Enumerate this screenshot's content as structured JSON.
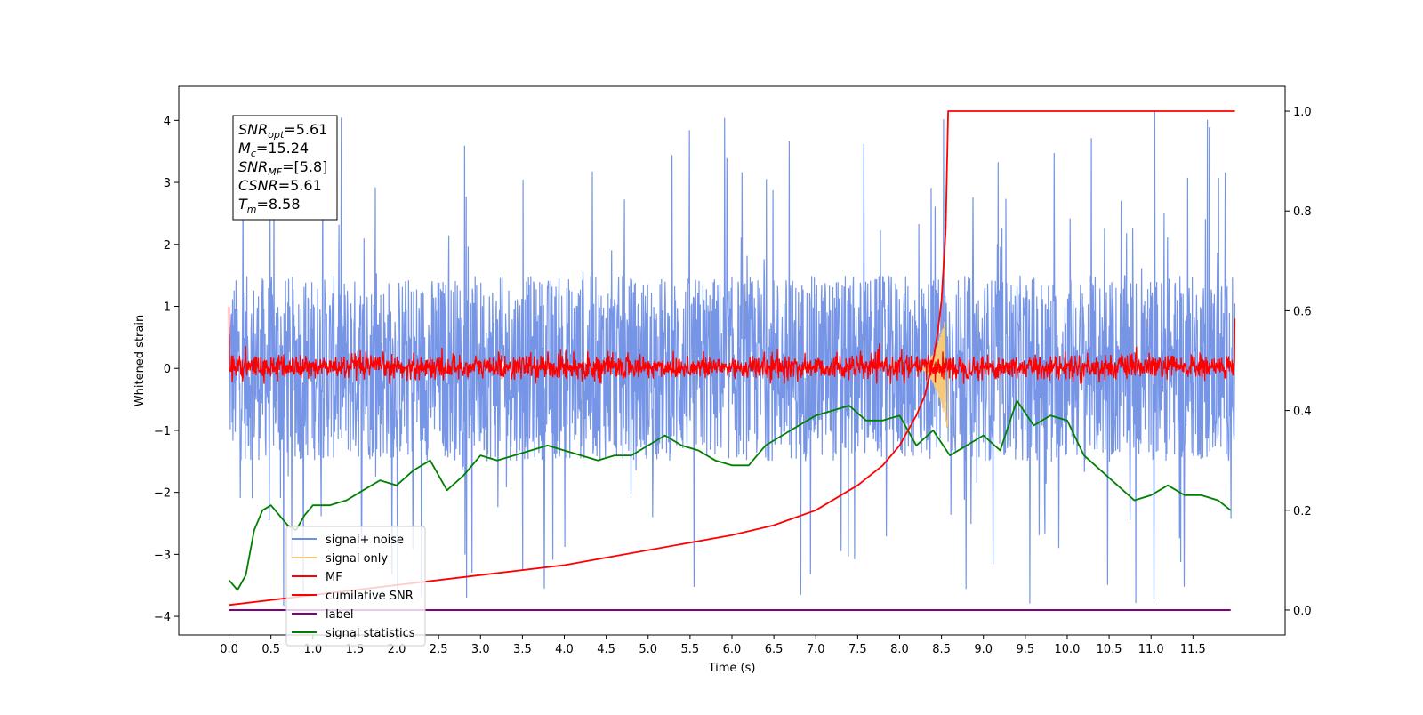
{
  "chart_data": {
    "type": "line",
    "xlabel": "Time (s)",
    "ylabel": "Whitened strain",
    "xlim": [
      -0.6,
      12.6
    ],
    "ylim": [
      -4.3,
      4.55
    ],
    "y2lim": [
      -0.05,
      1.05
    ],
    "x_ticks": [
      "0.0",
      "0.5",
      "1.0",
      "1.5",
      "2.0",
      "2.5",
      "3.0",
      "3.5",
      "4.0",
      "4.5",
      "5.0",
      "5.5",
      "6.0",
      "6.5",
      "7.0",
      "7.5",
      "8.0",
      "8.5",
      "9.0",
      "9.5",
      "10.0",
      "10.5",
      "11.0",
      "11.5"
    ],
    "y_ticks": [
      "4",
      "3",
      "2",
      "1",
      "0",
      "−1",
      "−2",
      "−3",
      "−4"
    ],
    "y2_ticks": [
      "1.0",
      "0.8",
      "0.6",
      "0.4",
      "0.2",
      "0.0"
    ],
    "grid": false,
    "legend_position": "lower-left",
    "info_box": [
      {
        "base": "SNR",
        "sub": "opt",
        "rest": "=5.61"
      },
      {
        "base": "M",
        "sub": "c",
        "rest": "=15.24"
      },
      {
        "base": "SNR",
        "sub": "MF",
        "rest": "=[5.8]"
      },
      {
        "base": "CSNR",
        "sub": "",
        "rest": "=5.61"
      },
      {
        "base": "T",
        "sub": "m",
        "rest": "=8.58"
      }
    ],
    "series": [
      {
        "name": "signal+ noise",
        "color": "#6f8fe6",
        "axis": "left",
        "x_range": [
          0.0,
          12.0
        ],
        "center": 0.0,
        "envelope_typical": [
          -1.5,
          1.5
        ],
        "envelope_extreme": [
          -3.85,
          4.15
        ]
      },
      {
        "name": "signal only",
        "color": "#f5c97a",
        "axis": "left",
        "x_range": [
          8.2,
          8.58
        ],
        "peak_amplitude": 1.0
      },
      {
        "name": "MF",
        "color": "#ff0000",
        "axis": "left",
        "x_range": [
          0.0,
          12.0
        ],
        "center": 0.0,
        "envelope_typical": [
          -0.25,
          0.35
        ],
        "start_value": 1.0,
        "end_value": 0.8
      },
      {
        "name": "cumilative SNR",
        "color": "#ff0000",
        "axis": "right",
        "x": [
          0.0,
          1.0,
          2.0,
          3.0,
          4.0,
          5.0,
          6.0,
          6.5,
          7.0,
          7.5,
          7.8,
          8.0,
          8.2,
          8.3,
          8.4,
          8.45,
          8.5,
          8.55,
          8.58,
          12.0
        ],
        "values": [
          0.01,
          0.03,
          0.05,
          0.07,
          0.09,
          0.12,
          0.15,
          0.17,
          0.2,
          0.25,
          0.29,
          0.33,
          0.39,
          0.43,
          0.5,
          0.55,
          0.62,
          0.76,
          1.0,
          1.0
        ]
      },
      {
        "name": "label",
        "color": "#800080",
        "axis": "right",
        "x": [
          0.0,
          11.95
        ],
        "values": [
          0.0,
          0.0
        ]
      },
      {
        "name": "signal statistics",
        "color": "#008000",
        "axis": "right",
        "x": [
          0.0,
          0.1,
          0.2,
          0.3,
          0.4,
          0.5,
          0.6,
          0.7,
          0.8,
          0.9,
          1.0,
          1.2,
          1.4,
          1.6,
          1.8,
          2.0,
          2.2,
          2.4,
          2.6,
          2.8,
          3.0,
          3.2,
          3.4,
          3.6,
          3.8,
          4.0,
          4.2,
          4.4,
          4.6,
          4.8,
          5.0,
          5.2,
          5.4,
          5.6,
          5.8,
          6.0,
          6.2,
          6.4,
          6.6,
          6.8,
          7.0,
          7.2,
          7.4,
          7.6,
          7.8,
          8.0,
          8.2,
          8.4,
          8.6,
          8.8,
          9.0,
          9.2,
          9.4,
          9.6,
          9.8,
          10.0,
          10.2,
          10.4,
          10.6,
          10.8,
          11.0,
          11.2,
          11.4,
          11.6,
          11.8,
          11.95
        ],
        "values": [
          0.06,
          0.04,
          0.07,
          0.16,
          0.2,
          0.21,
          0.19,
          0.17,
          0.16,
          0.19,
          0.21,
          0.21,
          0.22,
          0.24,
          0.26,
          0.25,
          0.28,
          0.3,
          0.24,
          0.27,
          0.31,
          0.3,
          0.31,
          0.32,
          0.33,
          0.32,
          0.31,
          0.3,
          0.31,
          0.31,
          0.33,
          0.35,
          0.33,
          0.32,
          0.3,
          0.29,
          0.29,
          0.33,
          0.35,
          0.37,
          0.39,
          0.4,
          0.41,
          0.38,
          0.38,
          0.39,
          0.33,
          0.36,
          0.31,
          0.33,
          0.35,
          0.32,
          0.42,
          0.37,
          0.39,
          0.38,
          0.31,
          0.28,
          0.25,
          0.22,
          0.23,
          0.25,
          0.23,
          0.23,
          0.22,
          0.2
        ]
      }
    ]
  }
}
